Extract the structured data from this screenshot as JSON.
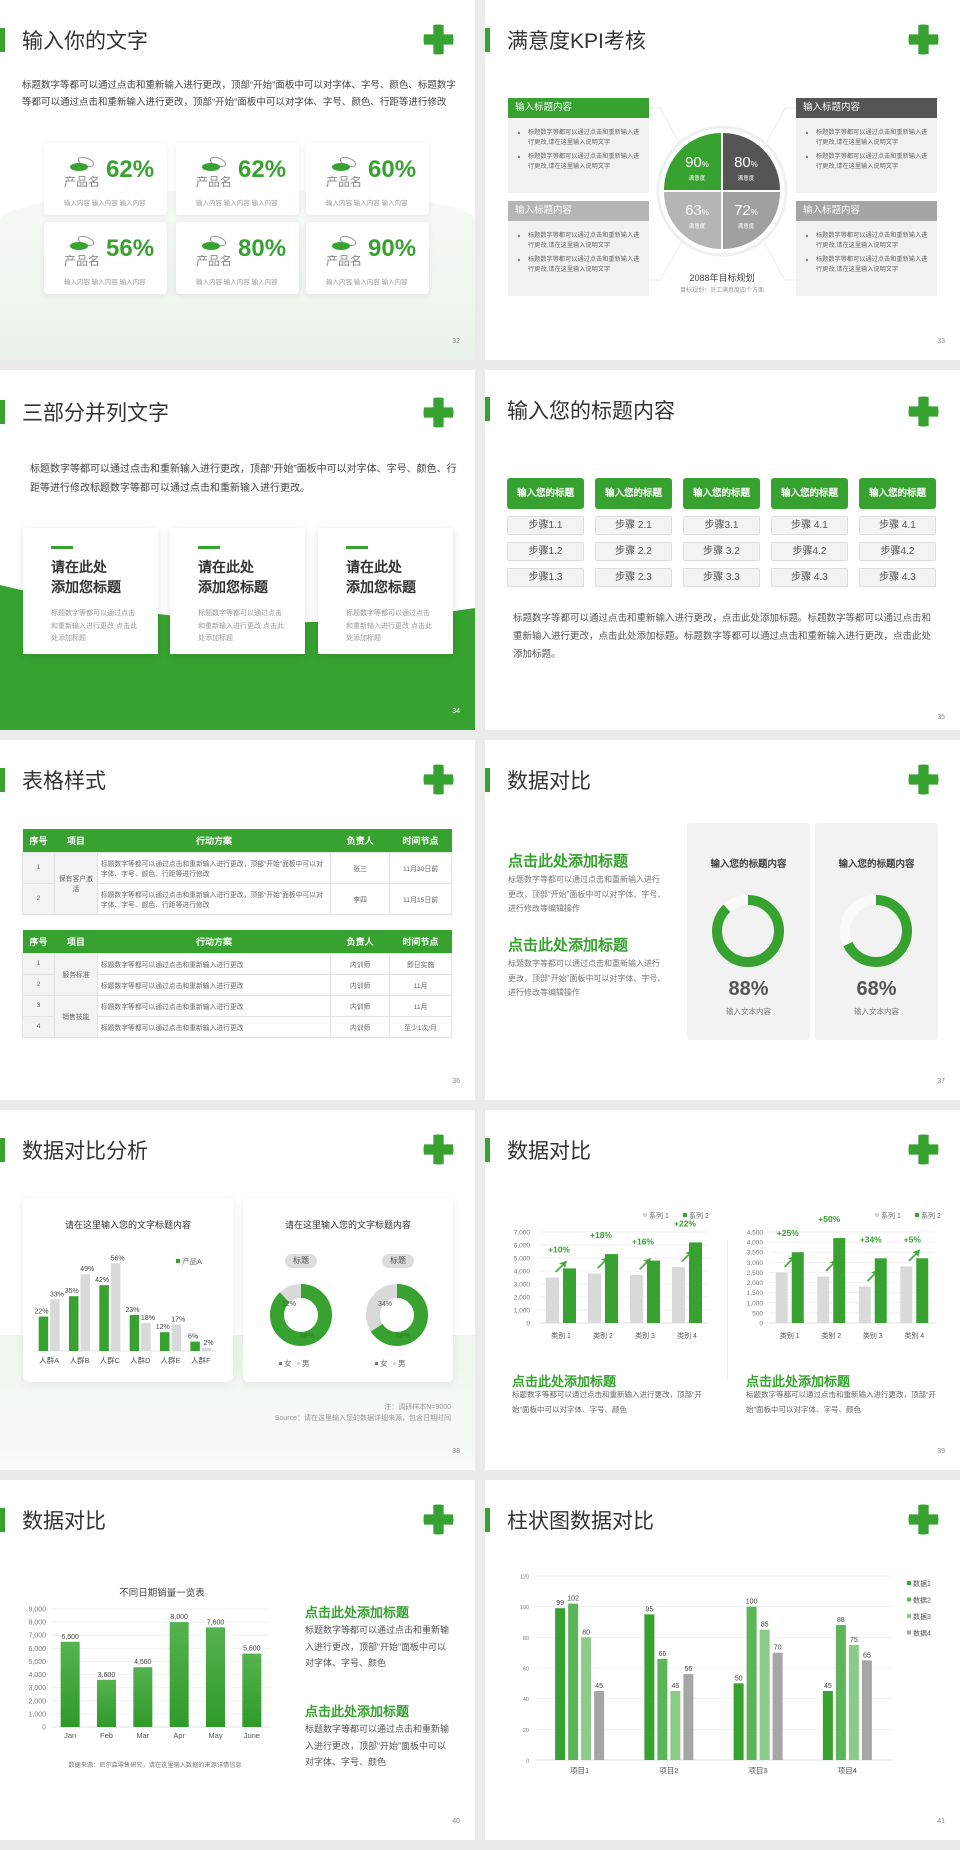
{
  "colors": {
    "green": "#37a22f",
    "dark_gray": "#555555",
    "mid_gray": "#a6a6a6",
    "light_gray": "#d9d9d9"
  },
  "s32": {
    "title": "输入你的文字",
    "page": "32",
    "para": "标题数字等都可以通过点击和重新输入进行更改，顶部“开始”面板中可以对字体、字号、颜色、标题数字等都可以通过点击和重新输入进行更改，顶部“开始”面板中可以对字体、字号、颜色、行距等进行修改",
    "cards": [
      {
        "pct": "62%",
        "name": "产品名",
        "sub": "输入内容  输入内容  输入内容"
      },
      {
        "pct": "62%",
        "name": "产品名",
        "sub": "输入内容  输入内容  输入内容"
      },
      {
        "pct": "60%",
        "name": "产品名",
        "sub": "输入内容  输入内容  输入内容"
      },
      {
        "pct": "56%",
        "name": "产品名",
        "sub": "输入内容  输入内容  输入内容"
      },
      {
        "pct": "80%",
        "name": "产品名",
        "sub": "输入内容  输入内容  输入内容"
      },
      {
        "pct": "90%",
        "name": "产品名",
        "sub": "输入内容  输入内容  输入内容"
      }
    ]
  },
  "s33": {
    "title": "满意度KPI考核",
    "page": "33",
    "boxes": [
      {
        "header": "输入标题内容",
        "bullets": [
          "标题数字等都可以通过点击和重新输入进行更改,请在这里输入说明文字",
          "标题数字等都可以通过点击和重新输入进行更改,请在这里输入说明文字"
        ]
      },
      {
        "header": "输入标题内容",
        "bullets": [
          "标题数字等都可以通过点击和重新输入进行更改,请在这里输入说明文字",
          "标题数字等都可以通过点击和重新输入进行更改,请在这里输入说明文字"
        ]
      },
      {
        "header": "输入标题内容",
        "bullets": [
          "标题数字等都可以通过点击和重新输入进行更改,请在这里输入说明文字",
          "标题数字等都可以通过点击和重新输入进行更改,请在这里输入说明文字"
        ]
      },
      {
        "header": "输入标题内容",
        "bullets": [
          "标题数字等都可以通过点击和重新输入进行更改,请在这里输入说明文字",
          "标题数字等都可以通过点击和重新输入进行更改,请在这里输入说明文字"
        ]
      }
    ],
    "quadrants": [
      {
        "value": "90",
        "unit": "%",
        "label": "满意度"
      },
      {
        "value": "80",
        "unit": "%",
        "label": "满意度"
      },
      {
        "value": "63",
        "unit": "%",
        "label": "满意度"
      },
      {
        "value": "72",
        "unit": "%",
        "label": "满意度"
      }
    ],
    "center_title": "2088年目标规划",
    "center_sub": "目标规划：员工满意度四个方面"
  },
  "s34": {
    "title": "三部分并列文字",
    "page": "34",
    "para": "标题数字等都可以通过点击和重新输入进行更改，顶部“开始”面板中可以对字体、字号、颜色、行距等进行修改标题数字等都可以通过点击和重新输入进行更改。",
    "cards": [
      {
        "line1": "请在此处",
        "line2": "添加您标题",
        "body": "标题数字等都可以通过点击和重新输入进行更改 点击此处添加标题"
      },
      {
        "line1": "请在此处",
        "line2": "添加您标题",
        "body": "标题数字等都可以通过点击和重新输入进行更改 点击此处添加标题"
      },
      {
        "line1": "请在此处",
        "line2": "添加您标题",
        "body": "标题数字等都可以通过点击和重新输入进行更改 点击此处添加标题"
      }
    ]
  },
  "s35": {
    "title": "输入您的标题内容",
    "page": "35",
    "columns": [
      {
        "header": "输入您的标题",
        "steps": [
          "步骤1.1",
          "步骤1.2",
          "步骤1.3"
        ]
      },
      {
        "header": "输入您的标题",
        "steps": [
          "步骤 2.1",
          "步骤 2.2",
          "步骤 2.3"
        ]
      },
      {
        "header": "输入您的标题",
        "steps": [
          "步骤3.1",
          "步骤 3.2",
          "步骤 3.3"
        ]
      },
      {
        "header": "输入您的标题",
        "steps": [
          "步骤 4.1",
          "步骤4.2",
          "步骤 4.3"
        ]
      },
      {
        "header": "输入您的标题",
        "steps": [
          "步骤 4.1",
          "步骤4.2",
          "步骤 4.3"
        ]
      }
    ],
    "para": "标题数字等都可以通过点击和重新输入进行更改，点击此处添加标题。标题数字等都可以通过点击和重新输入进行更改，点击此处添加标题。标题数字等都可以通过点击和重新输入进行更改，点击此处添加标题。"
  },
  "s36": {
    "title": "表格样式",
    "page": "36",
    "headers": [
      "序号",
      "项目",
      "行动方案",
      "负责人",
      "时间节点"
    ],
    "table1": {
      "group": "保有客户激活",
      "rows": [
        {
          "no": "1",
          "plan": "标题数字等都可以通过点击和重新输入进行更改，顶部“开始”面板中可以对字体、字号、颜色、行距等进行修改",
          "owner": "张三",
          "time": "11月30日前"
        },
        {
          "no": "2",
          "plan": "标题数字等都可以通过点击和重新输入进行更改，顶部“开始”面板中可以对字体、字号、颜色、行距等进行修改",
          "owner": "李四",
          "time": "11月15日前"
        }
      ]
    },
    "table2": {
      "groups": [
        "服务标准",
        "销售技能"
      ],
      "rows": [
        {
          "no": "1",
          "plan": "标题数字等都可以通过点击和重新输入进行更改",
          "owner": "内训师",
          "time": "即日实施"
        },
        {
          "no": "2",
          "plan": "标题数字等都可以通过点击和重新输入进行更改",
          "owner": "内训师",
          "time": "11月"
        },
        {
          "no": "3",
          "plan": "标题数字等都可以通过点击和重新输入进行更改",
          "owner": "内训师",
          "time": "11月"
        },
        {
          "no": "4",
          "plan": "标题数字等都可以通过点击和重新输入进行更改",
          "owner": "内训师",
          "time": "至少1次/月"
        }
      ]
    }
  },
  "s37": {
    "title": "数据对比",
    "page": "37",
    "sections": [
      {
        "heading": "点击此处添加标题",
        "body": "标题数字等都可以通过点击和重新输入进行更改，顶部“开始”面板中可以对字体、字号、进行修改等编辑操作"
      },
      {
        "heading": "点击此处添加标题",
        "body": "标题数字等都可以通过点击和重新输入进行更改，顶部“开始”面板中可以对字体、字号、进行修改等编辑操作"
      }
    ],
    "cards": [
      {
        "title": "输入您的标题内容",
        "value": 88,
        "pct": "88%",
        "label": "输入文本内容"
      },
      {
        "title": "输入您的标题内容",
        "value": 68,
        "pct": "68%",
        "label": "输入文本内容"
      }
    ]
  },
  "s38": {
    "title": "数据对比分析",
    "page": "38",
    "card2_title": "请在这里输入您的文字标题内容",
    "note": "注：调研样本N=9000",
    "source": "Source：请在这里输入您的数据详细来源，包含日期时间"
  },
  "s39": {
    "title": "数据对比",
    "page": "39",
    "blocks": [
      {
        "heading": "点击此处添加标题",
        "body": "标题数字等都可以通过点击和重新输入进行更改，顶部“开始”面板中可以对字体、字号、颜色"
      },
      {
        "heading": "点击此处添加标题",
        "body": "标题数字等都可以通过点击和重新输入进行更改，顶部“开始”面板中可以对字体、字号、颜色"
      }
    ]
  },
  "s40": {
    "title": "数据对比",
    "page": "40",
    "source": "数据来源：尼尔森零售研究，请在这里输入数据的来源详情信息",
    "blocks": [
      {
        "heading": "点击此处添加标题",
        "body": "标题数字等都可以通过点击和重新输入进行更改，顶部“开始”面板中可以对字体、字号、颜色"
      },
      {
        "heading": "点击此处添加标题",
        "body": "标题数字等都可以通过点击和重新输入进行更改，顶部“开始”面板中可以对字体、字号、颜色"
      }
    ]
  },
  "s41": {
    "title": "柱状图数据对比",
    "page": "41"
  },
  "chart_data": [
    {
      "type": "bar",
      "title": "请在这里输入您的文字标题内容",
      "categories": [
        "人群A",
        "人群B",
        "人群C",
        "人群D",
        "人群E",
        "人群F"
      ],
      "series": [
        {
          "name": "产品A",
          "color": "#37a22f",
          "values": [
            22,
            35,
            42,
            23,
            12,
            6
          ]
        },
        {
          "color": "#d9d9d9",
          "values": [
            33,
            49,
            56,
            18,
            17,
            2
          ]
        }
      ],
      "value_suffix": "%",
      "ylim": [
        0,
        60
      ],
      "grid": false,
      "legend": "top-right"
    },
    {
      "type": "pie",
      "title": "标题",
      "slices": [
        {
          "label": "女",
          "value": 88,
          "color": "#37a22f"
        },
        {
          "label": "男",
          "value": 12,
          "color": "#d9d9d9"
        }
      ],
      "legend": "bottom"
    },
    {
      "type": "pie",
      "title": "标题",
      "slices": [
        {
          "label": "女",
          "value": 66,
          "color": "#37a22f"
        },
        {
          "label": "男",
          "value": 34,
          "color": "#d9d9d9"
        }
      ],
      "legend": "bottom"
    },
    {
      "type": "bar",
      "categories": [
        "类别 1",
        "类别 2",
        "类别 3",
        "类别 4"
      ],
      "series": [
        {
          "name": "系列 1",
          "color": "#d9d9d9",
          "values": [
            3500,
            3800,
            3700,
            4300
          ]
        },
        {
          "name": "系列 2",
          "color": "#37a22f",
          "values": [
            4200,
            5300,
            4800,
            6200
          ]
        }
      ],
      "annotations": [
        "+10%",
        "+18%",
        "+16%",
        "+22%"
      ],
      "ylim": [
        0,
        7000
      ],
      "ytick_step": 1000,
      "grid": true,
      "legend": "top-right"
    },
    {
      "type": "bar",
      "categories": [
        "类别 1",
        "类别 2",
        "类别 3",
        "类别 4"
      ],
      "series": [
        {
          "name": "系列 1",
          "color": "#d9d9d9",
          "values": [
            2500,
            2300,
            1800,
            2800
          ]
        },
        {
          "name": "系列 2",
          "color": "#37a22f",
          "values": [
            3500,
            4200,
            3200,
            3200
          ]
        }
      ],
      "annotations": [
        "+25%",
        "+50%",
        "+34%",
        "+5%"
      ],
      "ylim": [
        0,
        4500
      ],
      "ytick_step": 500,
      "grid": true,
      "legend": "top-right"
    },
    {
      "type": "bar",
      "title": "不同日期销量一览表",
      "categories": [
        "Jan",
        "Feb",
        "Mar",
        "Apr",
        "May",
        "June"
      ],
      "series": [
        {
          "color": "#37a22f",
          "values": [
            6500,
            3600,
            4560,
            8000,
            7600,
            5600
          ]
        }
      ],
      "ylim": [
        0,
        9000
      ],
      "ytick_step": 1000,
      "grid": true
    },
    {
      "type": "bar",
      "categories": [
        "项目1",
        "项目2",
        "项目3",
        "项目4"
      ],
      "series": [
        {
          "name": "数据1",
          "color": "#37a22f",
          "values": [
            99,
            95,
            50,
            45
          ]
        },
        {
          "name": "数据2",
          "color": "#5db55a",
          "values": [
            102,
            66,
            100,
            88
          ]
        },
        {
          "name": "数据3",
          "color": "#8acb87",
          "values": [
            80,
            45,
            85,
            75
          ]
        },
        {
          "name": "数据4",
          "color": "#a6a6a6",
          "values": [
            45,
            56,
            70,
            65
          ]
        }
      ],
      "ylim": [
        0,
        120
      ],
      "ytick_step": 20,
      "grid": true,
      "legend": "right"
    }
  ]
}
